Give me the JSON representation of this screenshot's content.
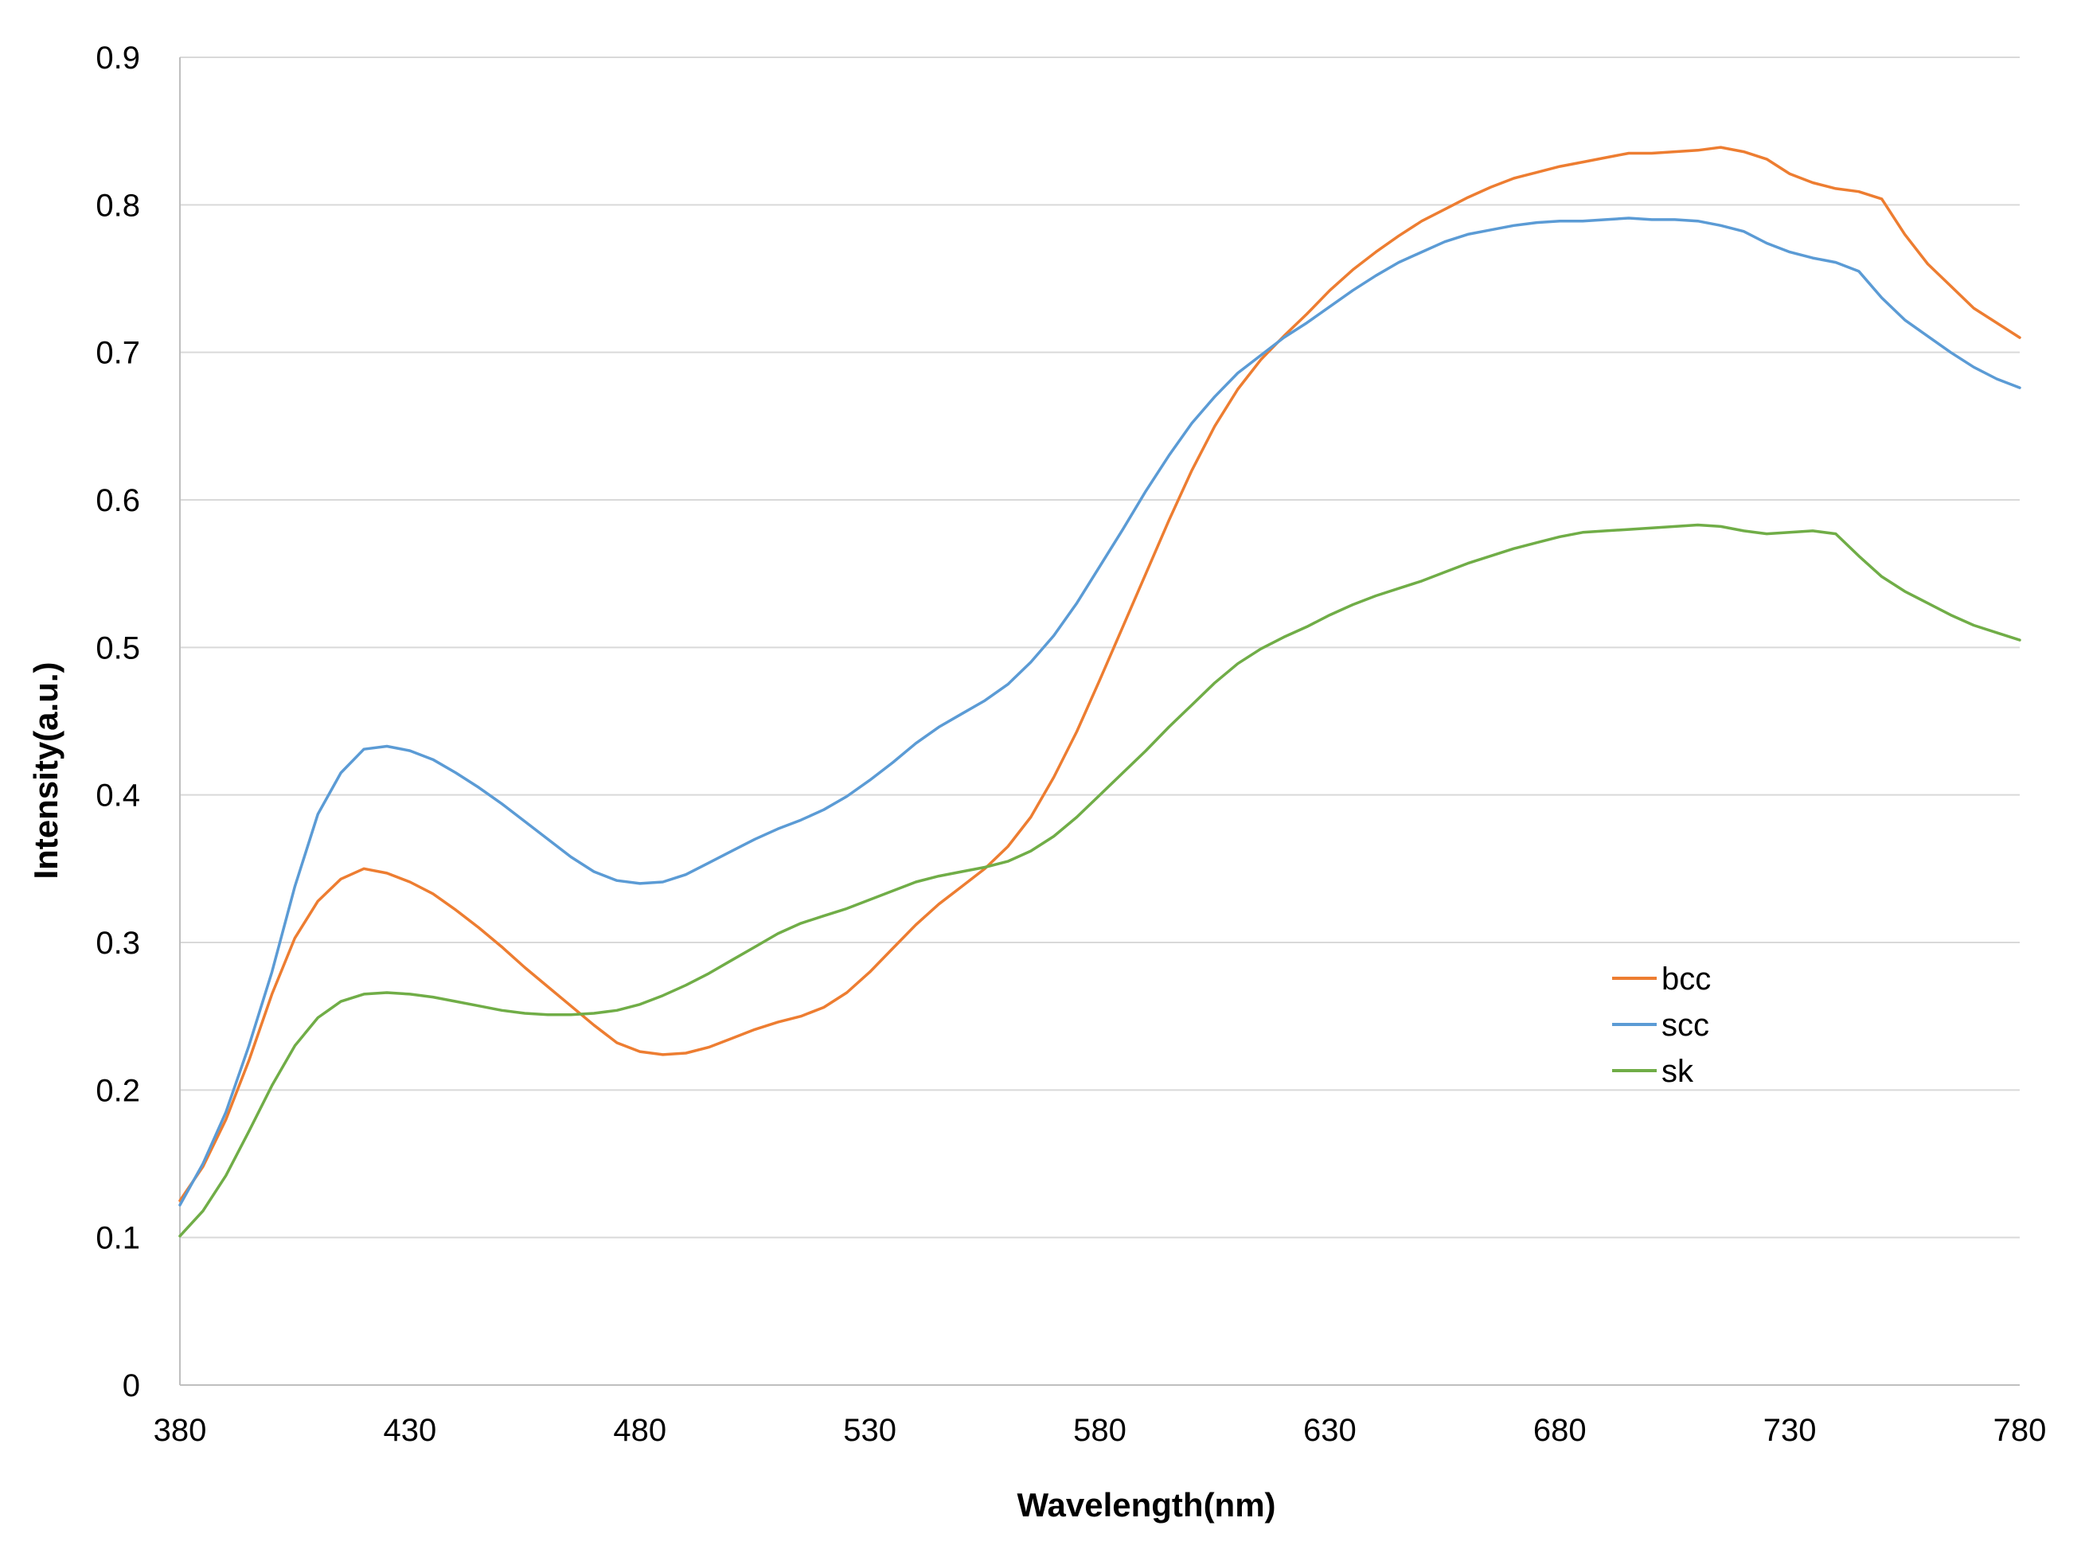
{
  "chart_data": {
    "type": "line",
    "xlabel": "Wavelength(nm)",
    "ylabel": "Intensity(a.u.)",
    "xlim": [
      380,
      780
    ],
    "ylim": [
      0,
      0.9
    ],
    "x_ticks": [
      "380",
      "430",
      "480",
      "530",
      "580",
      "630",
      "680",
      "730",
      "780"
    ],
    "y_ticks": [
      "0",
      "0.1",
      "0.2",
      "0.3",
      "0.4",
      "0.5",
      "0.6",
      "0.7",
      "0.8",
      "0.9"
    ],
    "grid": true,
    "legend_position": "right-middle",
    "x": [
      380,
      385,
      390,
      395,
      400,
      405,
      410,
      415,
      420,
      425,
      430,
      435,
      440,
      445,
      450,
      455,
      460,
      465,
      470,
      475,
      480,
      485,
      490,
      495,
      500,
      505,
      510,
      515,
      520,
      525,
      530,
      535,
      540,
      545,
      550,
      555,
      560,
      565,
      570,
      575,
      580,
      585,
      590,
      595,
      600,
      605,
      610,
      615,
      620,
      625,
      630,
      635,
      640,
      645,
      650,
      655,
      660,
      665,
      670,
      675,
      680,
      685,
      690,
      695,
      700,
      705,
      710,
      715,
      720,
      725,
      730,
      735,
      740,
      745,
      750,
      755,
      760,
      765,
      770,
      775,
      780
    ],
    "series": [
      {
        "name": "bcc",
        "color": "#ed7d31",
        "values": [
          0.125,
          0.148,
          0.18,
          0.22,
          0.265,
          0.303,
          0.328,
          0.343,
          0.35,
          0.347,
          0.341,
          0.333,
          0.322,
          0.31,
          0.297,
          0.283,
          0.27,
          0.257,
          0.244,
          0.232,
          0.226,
          0.224,
          0.225,
          0.229,
          0.235,
          0.241,
          0.246,
          0.25,
          0.256,
          0.266,
          0.28,
          0.296,
          0.312,
          0.326,
          0.338,
          0.35,
          0.365,
          0.385,
          0.412,
          0.443,
          0.478,
          0.514,
          0.55,
          0.586,
          0.62,
          0.65,
          0.675,
          0.695,
          0.711,
          0.726,
          0.742,
          0.756,
          0.768,
          0.779,
          0.789,
          0.797,
          0.805,
          0.812,
          0.818,
          0.822,
          0.826,
          0.829,
          0.832,
          0.835,
          0.835,
          0.836,
          0.837,
          0.839,
          0.836,
          0.831,
          0.821,
          0.815,
          0.811,
          0.809,
          0.804,
          0.78,
          0.76,
          0.745,
          0.73,
          0.72,
          0.71
        ]
      },
      {
        "name": "scc",
        "color": "#5b9bd5",
        "values": [
          0.122,
          0.15,
          0.185,
          0.23,
          0.28,
          0.338,
          0.387,
          0.415,
          0.431,
          0.433,
          0.43,
          0.424,
          0.415,
          0.405,
          0.394,
          0.382,
          0.37,
          0.358,
          0.348,
          0.342,
          0.34,
          0.341,
          0.346,
          0.354,
          0.362,
          0.37,
          0.377,
          0.383,
          0.39,
          0.399,
          0.41,
          0.422,
          0.435,
          0.446,
          0.455,
          0.464,
          0.475,
          0.49,
          0.508,
          0.53,
          0.555,
          0.58,
          0.606,
          0.63,
          0.652,
          0.67,
          0.686,
          0.698,
          0.71,
          0.72,
          0.731,
          0.742,
          0.752,
          0.761,
          0.768,
          0.775,
          0.78,
          0.783,
          0.786,
          0.788,
          0.789,
          0.789,
          0.79,
          0.791,
          0.79,
          0.79,
          0.789,
          0.786,
          0.782,
          0.774,
          0.768,
          0.764,
          0.761,
          0.755,
          0.737,
          0.722,
          0.711,
          0.7,
          0.69,
          0.682,
          0.676
        ]
      },
      {
        "name": "sk",
        "color": "#70ad47",
        "values": [
          0.101,
          0.118,
          0.142,
          0.172,
          0.203,
          0.23,
          0.249,
          0.26,
          0.265,
          0.266,
          0.265,
          0.263,
          0.26,
          0.257,
          0.254,
          0.252,
          0.251,
          0.251,
          0.252,
          0.254,
          0.258,
          0.264,
          0.271,
          0.279,
          0.288,
          0.297,
          0.306,
          0.313,
          0.318,
          0.323,
          0.329,
          0.335,
          0.341,
          0.345,
          0.348,
          0.351,
          0.355,
          0.362,
          0.372,
          0.385,
          0.4,
          0.415,
          0.43,
          0.446,
          0.461,
          0.476,
          0.489,
          0.499,
          0.507,
          0.514,
          0.522,
          0.529,
          0.535,
          0.54,
          0.545,
          0.551,
          0.557,
          0.562,
          0.567,
          0.571,
          0.575,
          0.578,
          0.579,
          0.58,
          0.581,
          0.582,
          0.583,
          0.582,
          0.579,
          0.577,
          0.578,
          0.579,
          0.577,
          0.562,
          0.548,
          0.538,
          0.53,
          0.522,
          0.515,
          0.51,
          0.505
        ]
      }
    ]
  }
}
